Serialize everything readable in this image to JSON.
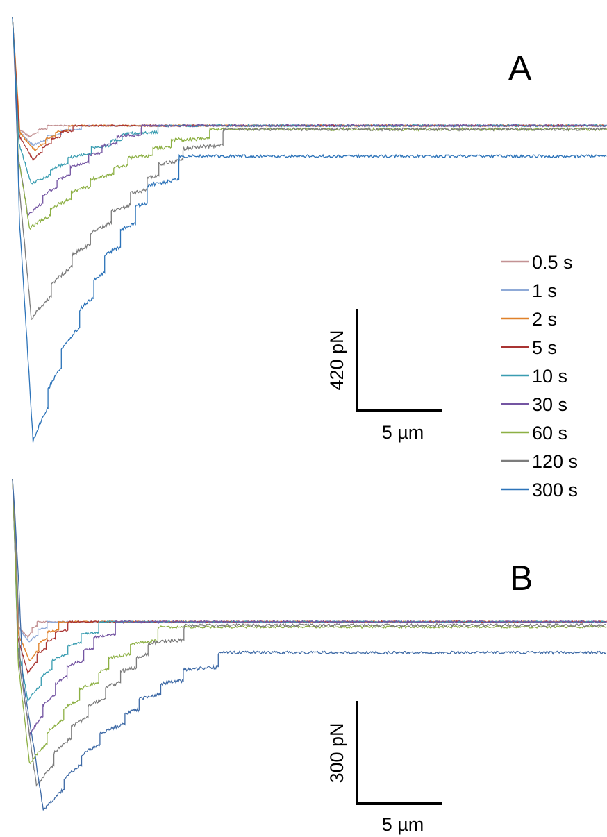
{
  "chart_data": [
    {
      "type": "line",
      "panel_label": "A",
      "x_unit": "µm",
      "y_unit": "pN",
      "scale_bar": {
        "x_value": 5,
        "x_label": "5 µm",
        "y_value": 420,
        "y_label": "420 pN"
      },
      "legend_placement": "right",
      "baseline_pN": 0,
      "series": [
        {
          "name": "0.5 s",
          "color": "#c39294",
          "peak_pN": -45,
          "peak_x_um": 1.0,
          "detach_x_um": 2.0,
          "final_offset_pN": 0,
          "steps": 2,
          "noise": 2.0
        },
        {
          "name": "1 s",
          "color": "#8faad7",
          "peak_pN": -80,
          "peak_x_um": 1.2,
          "detach_x_um": 4.0,
          "final_offset_pN": 0,
          "steps": 3,
          "noise": 2.5
        },
        {
          "name": "2 s",
          "color": "#e0812a",
          "peak_pN": -100,
          "peak_x_um": 1.3,
          "detach_x_um": 3.3,
          "final_offset_pN": 0,
          "steps": 3,
          "noise": 3
        },
        {
          "name": "5 s",
          "color": "#a93432",
          "peak_pN": -140,
          "peak_x_um": 1.2,
          "detach_x_um": 3.5,
          "final_offset_pN": 0,
          "steps": 4,
          "noise": 3
        },
        {
          "name": "10 s",
          "color": "#3a9db1",
          "peak_pN": -240,
          "peak_x_um": 1.1,
          "detach_x_um": 8.5,
          "final_offset_pN": 0,
          "steps": 6,
          "noise": 4
        },
        {
          "name": "30 s",
          "color": "#7455a2",
          "peak_pN": -370,
          "peak_x_um": 0.9,
          "detach_x_um": 7.5,
          "final_offset_pN": 0,
          "steps": 7,
          "noise": 4
        },
        {
          "name": "60 s",
          "color": "#8db044",
          "peak_pN": -420,
          "peak_x_um": 1.0,
          "detach_x_um": 11.5,
          "final_offset_pN": -15,
          "steps": 8,
          "noise": 5
        },
        {
          "name": "120 s",
          "color": "#7c7c7c",
          "peak_pN": -790,
          "peak_x_um": 1.1,
          "detach_x_um": 12.3,
          "final_offset_pN": -15,
          "steps": 9,
          "noise": 5
        },
        {
          "name": "300 s",
          "color": "#2c73b9",
          "peak_pN": -1290,
          "peak_x_um": 1.2,
          "detach_x_um": 9.7,
          "final_offset_pN": -125,
          "steps": 9,
          "noise": 5
        }
      ]
    },
    {
      "type": "line",
      "panel_label": "B",
      "x_unit": "µm",
      "y_unit": "pN",
      "scale_bar": {
        "x_value": 5,
        "x_label": "5 µm",
        "y_value": 300,
        "y_label": "300 pN"
      },
      "baseline_pN": 0,
      "series": [
        {
          "name": "0.5 s",
          "color": "#c39294",
          "peak_pN": -45,
          "peak_x_um": 0.9,
          "detach_x_um": 1.4,
          "final_offset_pN": 0,
          "steps": 2,
          "noise": 2
        },
        {
          "name": "1 s",
          "color": "#8faad7",
          "peak_pN": -60,
          "peak_x_um": 1.0,
          "detach_x_um": 2.0,
          "final_offset_pN": 0,
          "steps": 2,
          "noise": 2
        },
        {
          "name": "2 s",
          "color": "#e0812a",
          "peak_pN": -115,
          "peak_x_um": 1.0,
          "detach_x_um": 2.7,
          "final_offset_pN": 0,
          "steps": 3,
          "noise": 3
        },
        {
          "name": "5 s",
          "color": "#a93432",
          "peak_pN": -150,
          "peak_x_um": 0.9,
          "detach_x_um": 3.2,
          "final_offset_pN": 0,
          "steps": 4,
          "noise": 3
        },
        {
          "name": "10 s",
          "color": "#3a9db1",
          "peak_pN": -230,
          "peak_x_um": 0.9,
          "detach_x_um": 5.0,
          "final_offset_pN": 0,
          "steps": 5,
          "noise": 3
        },
        {
          "name": "30 s",
          "color": "#7455a2",
          "peak_pN": -330,
          "peak_x_um": 1.0,
          "detach_x_um": 6.0,
          "final_offset_pN": 0,
          "steps": 6,
          "noise": 4
        },
        {
          "name": "60 s",
          "color": "#8db044",
          "peak_pN": -415,
          "peak_x_um": 1.0,
          "detach_x_um": 8.5,
          "final_offset_pN": -15,
          "steps": 7,
          "noise": 4
        },
        {
          "name": "120 s",
          "color": "#7c7c7c",
          "peak_pN": -480,
          "peak_x_um": 1.4,
          "detach_x_um": 10.0,
          "final_offset_pN": -10,
          "steps": 8,
          "noise": 5
        },
        {
          "name": "300 s",
          "color": "#3e6aa6",
          "peak_pN": -550,
          "peak_x_um": 1.8,
          "detach_x_um": 12.0,
          "final_offset_pN": -90,
          "steps": 8,
          "noise": 5
        }
      ]
    }
  ]
}
